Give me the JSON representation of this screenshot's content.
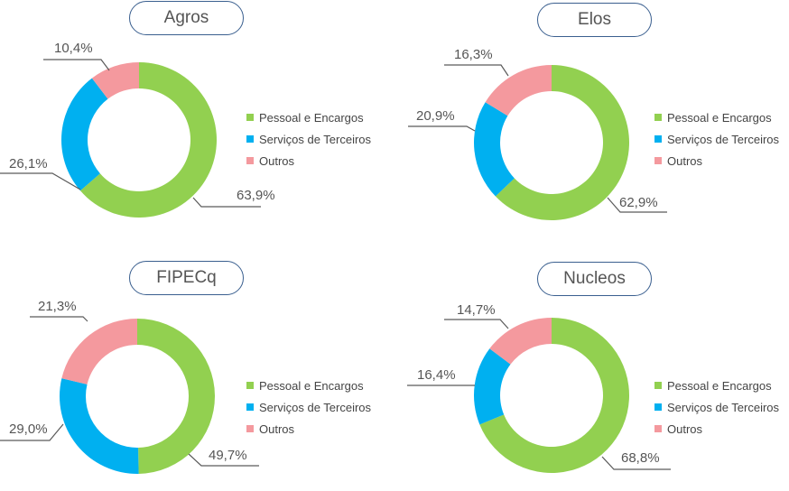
{
  "legend": {
    "items": [
      {
        "label": "Pessoal e Encargos",
        "color": "#92d050"
      },
      {
        "label": "Serviços de Terceiros",
        "color": "#00b0f0"
      },
      {
        "label": "Outros",
        "color": "#f4999e"
      }
    ]
  },
  "chart_data": [
    {
      "type": "pie",
      "title": "Agros",
      "categories": [
        "Pessoal e Encargos",
        "Serviços de Terceiros",
        "Outros"
      ],
      "values": [
        63.9,
        26.1,
        10.4
      ],
      "labels": [
        "63,9%",
        "26,1%",
        "10,4%"
      ],
      "colors": [
        "#92d050",
        "#00b0f0",
        "#f4999e"
      ]
    },
    {
      "type": "pie",
      "title": "Elos",
      "categories": [
        "Pessoal e Encargos",
        "Serviços de Terceiros",
        "Outros"
      ],
      "values": [
        62.9,
        20.9,
        16.3
      ],
      "labels": [
        "62,9%",
        "20,9%",
        "16,3%"
      ],
      "colors": [
        "#92d050",
        "#00b0f0",
        "#f4999e"
      ]
    },
    {
      "type": "pie",
      "title": "FIPECq",
      "categories": [
        "Pessoal e Encargos",
        "Serviços de Terceiros",
        "Outros"
      ],
      "values": [
        49.7,
        29.0,
        21.3
      ],
      "labels": [
        "49,7%",
        "29,0%",
        "21,3%"
      ],
      "colors": [
        "#92d050",
        "#00b0f0",
        "#f4999e"
      ]
    },
    {
      "type": "pie",
      "title": "Nucleos",
      "categories": [
        "Pessoal e Encargos",
        "Serviços de Terceiros",
        "Outros"
      ],
      "values": [
        68.8,
        16.4,
        14.7
      ],
      "labels": [
        "68,8%",
        "16,4%",
        "14,7%"
      ],
      "colors": [
        "#92d050",
        "#00b0f0",
        "#f4999e"
      ]
    }
  ]
}
